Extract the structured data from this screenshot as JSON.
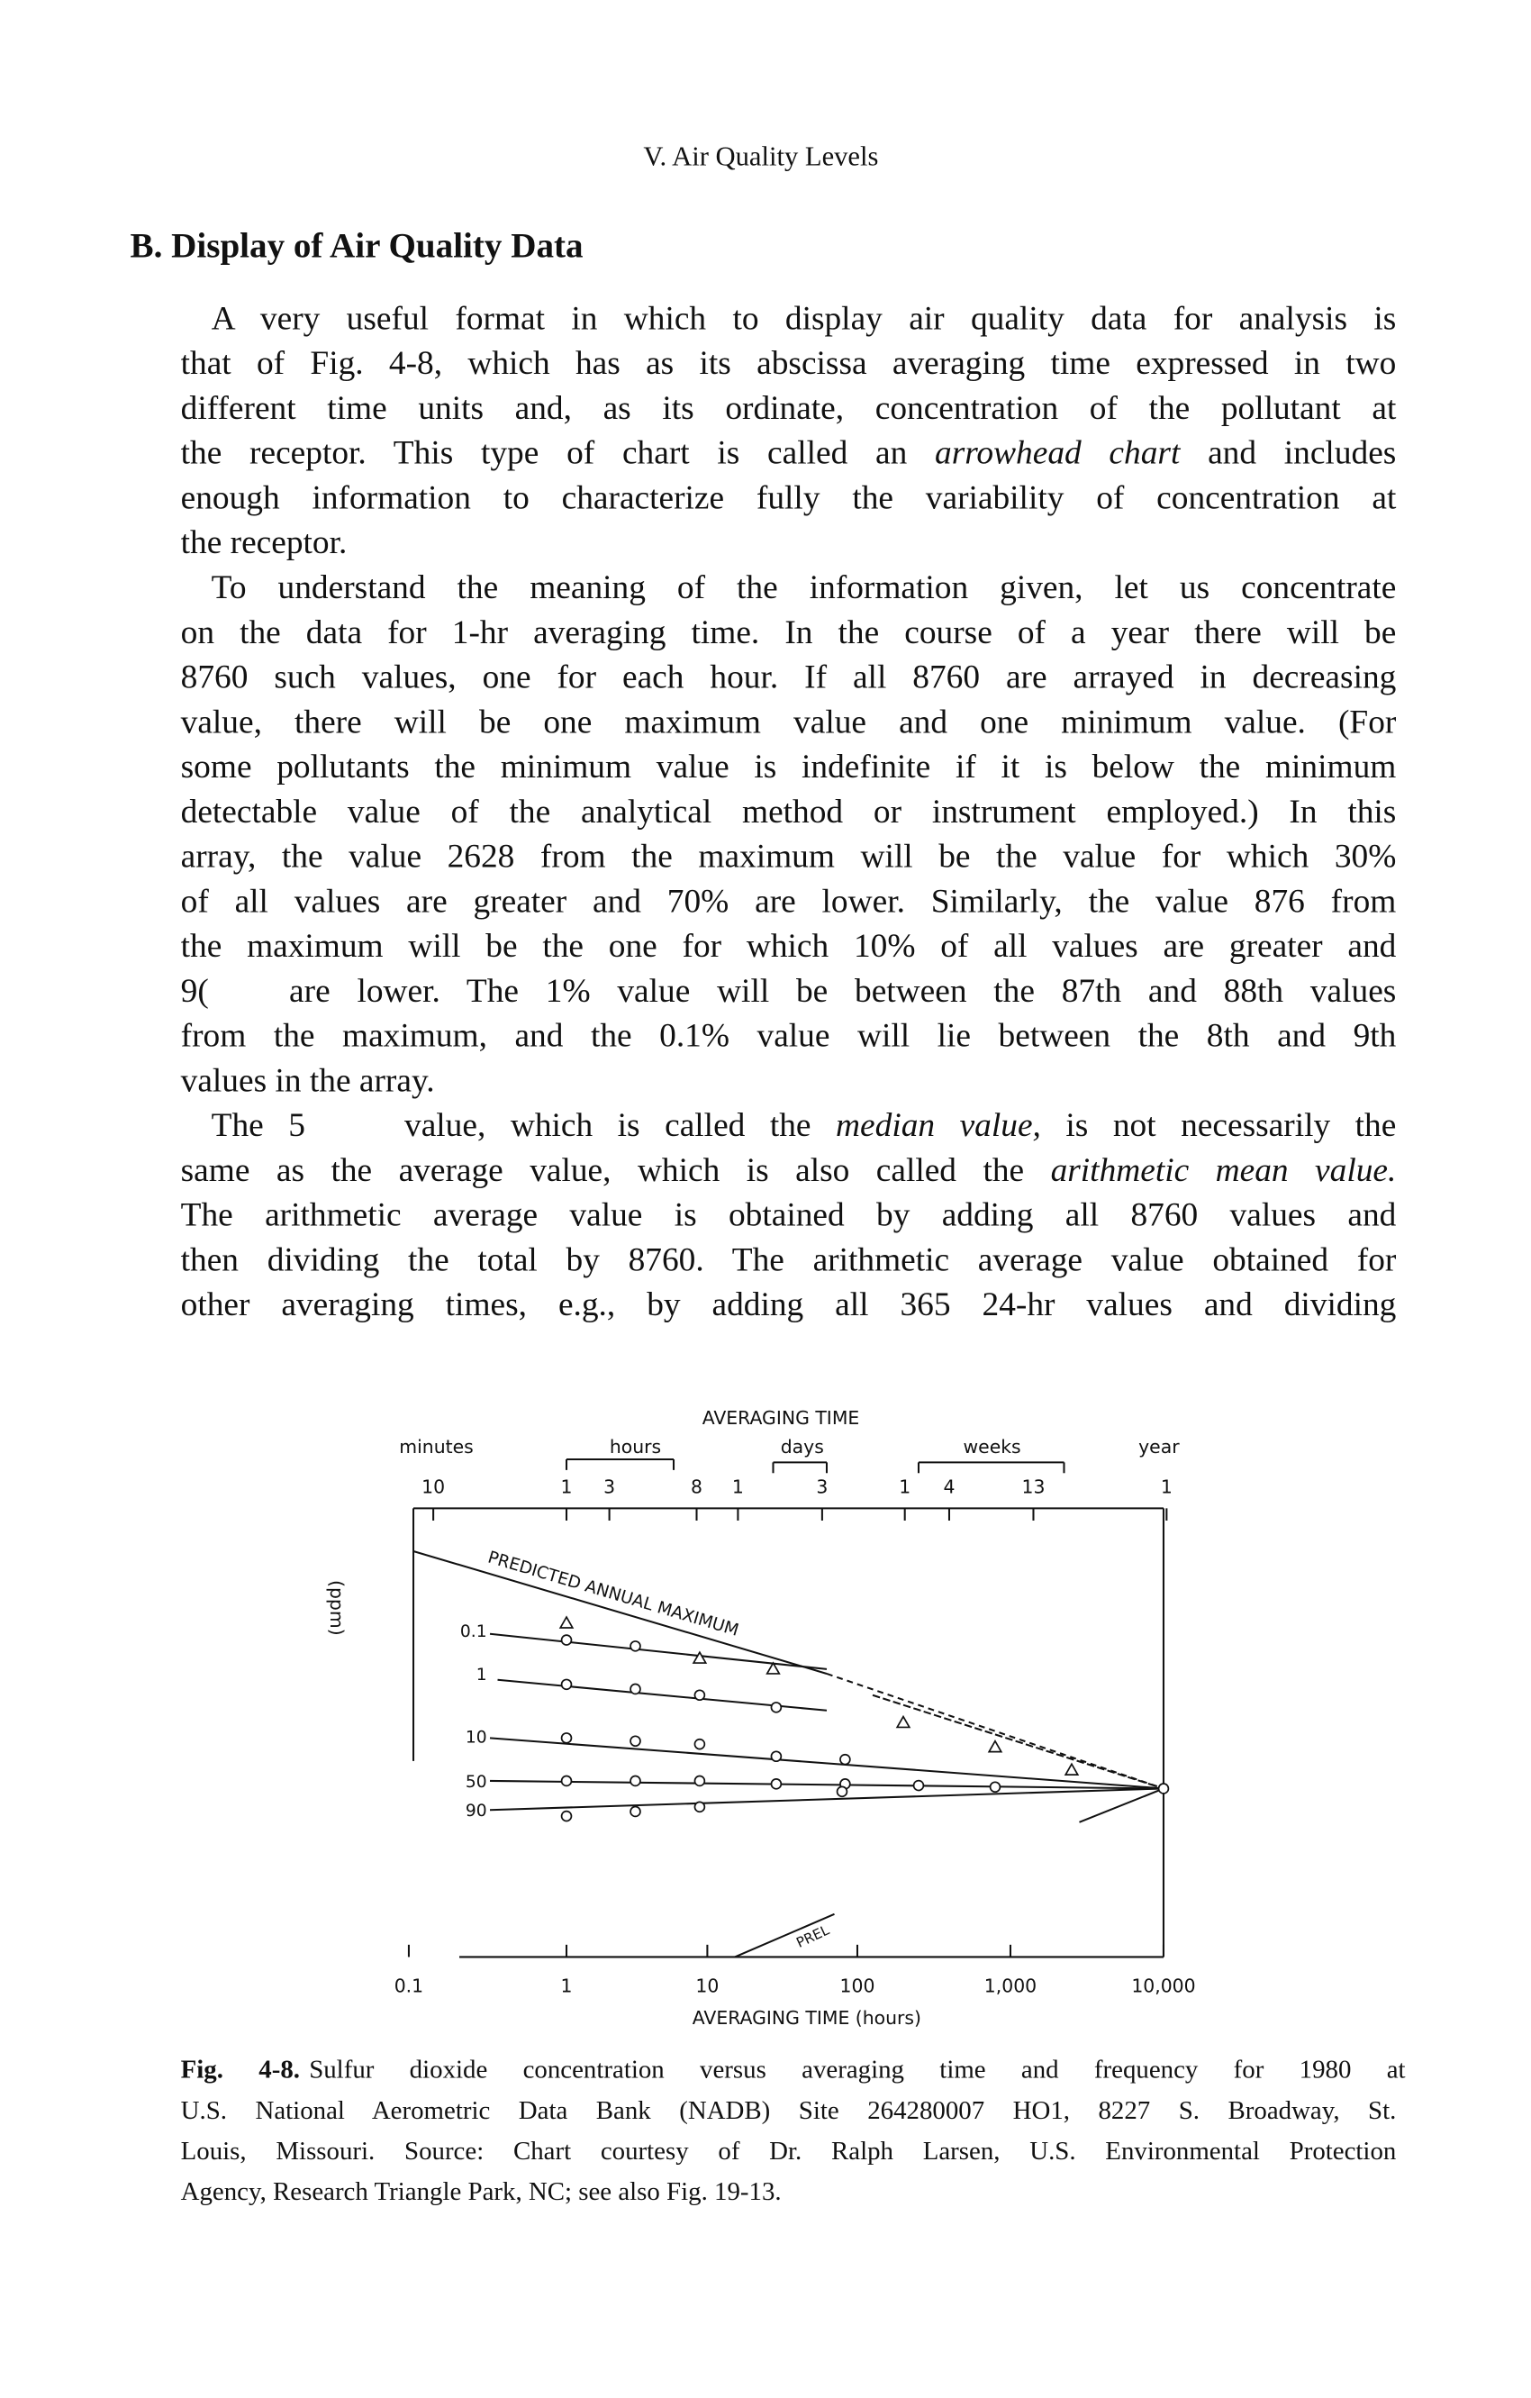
{
  "header": {
    "running_head": "V. Air Quality Levels"
  },
  "section": {
    "heading": "B. Display of Air Quality Data",
    "paragraphs": [
      {
        "lines": [
          "A very useful format in which to display air quality data for analysis is",
          "that of Fig. 4-8, which has as its abscissa averaging time expressed in two",
          "different time units and, as its ordinate, concentration of the pollutant at",
          [
            "the receptor. This type of chart is called an ",
            "arrowhead chart",
            " and includes"
          ],
          "enough information to characterize fully the variability of concentration at",
          "the receptor."
        ]
      },
      {
        "lines": [
          "To understand the meaning of the information given, let us concentrate",
          "on the data for 1-hr averaging time. In the course of a year there will be",
          "8760 such values, one for each hour. If all 8760 are arrayed in decreasing",
          "value, there will be one maximum value and one minimum value. (For",
          "some pollutants the minimum value is indefinite if it is below the minimum",
          "detectable value of the analytical method or instrument employed.) In this",
          "array, the value 2628 from the maximum will be the value for which 30%",
          "of all values are greater and 70% are lower. Similarly, the value 876 from",
          "the maximum will be the one for which 10% of all values are greater and",
          "9(   are lower. The 1% value will be between the 87th and 88th values",
          "from the maximum, and the 0.1% value will lie between the 8th and 9th",
          "values in the array."
        ]
      },
      {
        "lines": [
          [
            "The 5    value, which is called the ",
            "median value,",
            " is not necessarily the"
          ],
          [
            "same as the average value, which is also called the ",
            "arithmetic mean value."
          ],
          "The arithmetic average value is obtained by adding all 8760 values and",
          "then dividing the total by 8760. The arithmetic average value obtained for",
          "other averaging times, e.g., by adding all 365 24-hr values and dividing"
        ]
      }
    ]
  },
  "figure": {
    "title": "AVERAGING TIME",
    "time_units": [
      "minutes",
      "hours",
      "days",
      "weeks",
      "year"
    ],
    "top_ticks": [
      "10",
      "1",
      "3",
      "8",
      "1",
      "3",
      "1",
      "4",
      "13",
      "1"
    ],
    "y_label": "(ppm)",
    "percentiles": [
      "0.1",
      "1",
      "10",
      "50",
      "90"
    ],
    "line_label": "PREDICTED ANNUAL MAXIMUM",
    "prel_label": "PREL",
    "bottom_ticks": [
      "0.1",
      "1",
      "10",
      "100",
      "1,000",
      "10,000"
    ],
    "x_label": "AVERAGING TIME (hours)"
  },
  "caption": {
    "label": "Fig. 4-8.",
    "lines": [
      "Sulfur dioxide concentration versus averaging time and frequency for 1980 at",
      "U.S. National Aerometric Data Bank (NADB) Site 264280007 HO1, 8227 S. Broadway, St.",
      "Louis, Missouri. Source: Chart courtesy of Dr. Ralph Larsen, U.S. Environmental Protection",
      "Agency, Research Triangle Park, NC; see also Fig. 19-13."
    ]
  }
}
